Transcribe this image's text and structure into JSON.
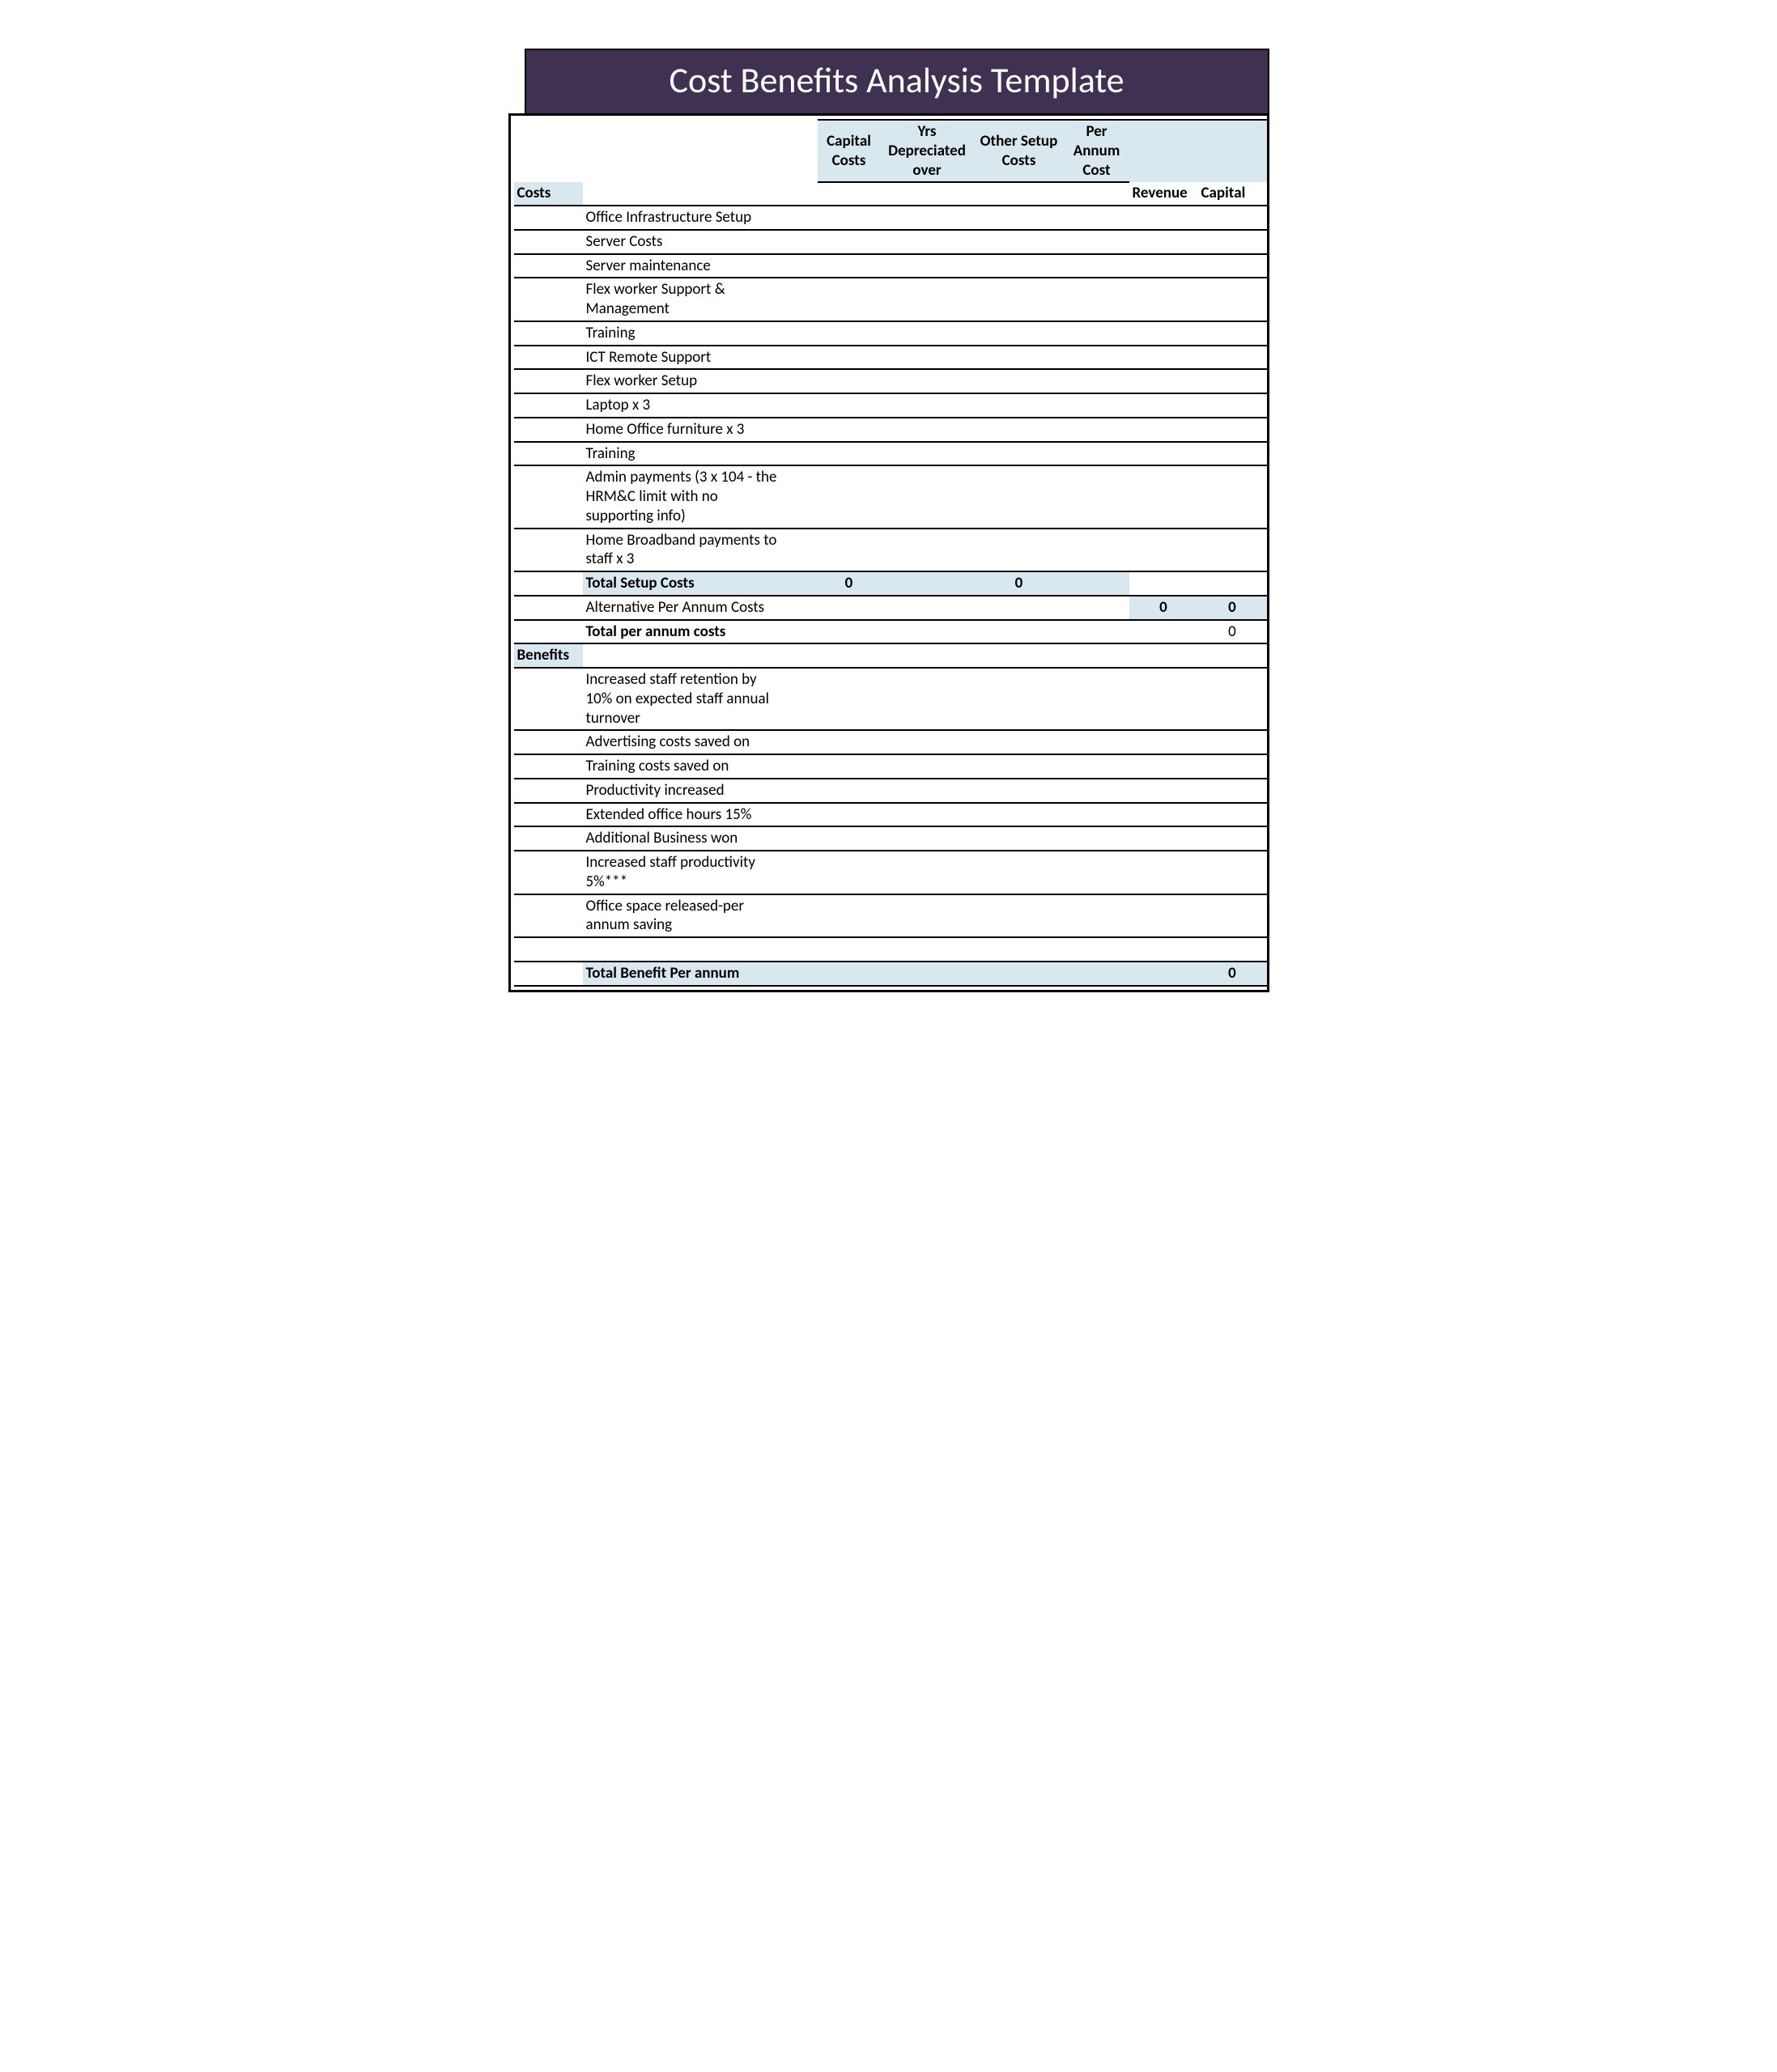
{
  "title": "Cost Benefits Analysis Template",
  "colors": {
    "title_bg": "#3f3151",
    "title_fg": "#ffffff",
    "accent_bg": "#d9e8ee",
    "border": "#000000",
    "page_bg": "#ffffff"
  },
  "typography": {
    "title_fontsize_pt": 32,
    "body_fontsize_pt": 14,
    "font_family": "Calibri"
  },
  "headers": {
    "capital_costs": "Capital Costs",
    "yrs_depreciated": "Yrs Depreciated over",
    "other_setup": "Other Setup Costs",
    "per_annum": "Per Annum Cost",
    "revenue": "Revenue",
    "capital": "Capital"
  },
  "sections": {
    "costs_label": "Costs",
    "benefits_label": "Benefits"
  },
  "costs_rows": [
    "Office Infrastructure Setup",
    "Server Costs",
    "Server maintenance",
    "Flex worker Support & Management",
    "Training",
    "ICT Remote Support",
    "Flex worker Setup",
    "Laptop x 3",
    "Home Office furniture x 3",
    "Training",
    "Admin payments (3 x 104 - the HRM&C limit with no supporting info)",
    "Home Broadband payments to staff x 3"
  ],
  "costs_totals": {
    "total_setup_label": "Total Setup Costs",
    "total_setup_capital": "0",
    "total_setup_other": "0",
    "alt_per_annum_label": "Alternative Per Annum Costs",
    "alt_revenue": "0",
    "alt_capital": "0",
    "total_per_annum_label": "Total per annum costs",
    "total_per_annum_capital": "0"
  },
  "benefits_rows": [
    "Increased staff retention by 10% on expected staff annual turnover",
    "Advertising costs saved on",
    "Training costs saved on",
    "Productivity increased",
    "Extended office hours 15%",
    "Additional Business won",
    "Increased staff productivity 5%***",
    "Office space released-per annum saving"
  ],
  "benefits_totals": {
    "total_benefit_label": "Total Benefit Per annum",
    "total_benefit_capital": "0"
  }
}
